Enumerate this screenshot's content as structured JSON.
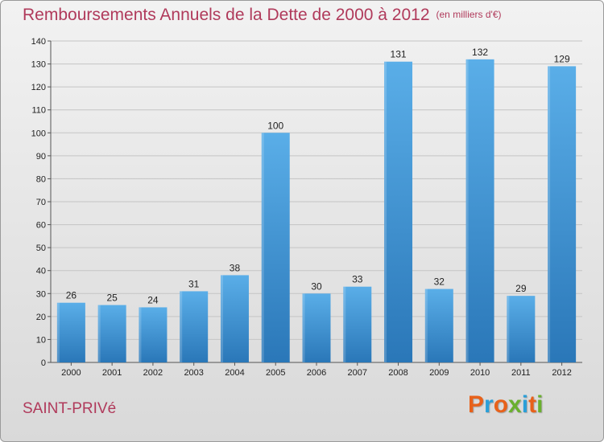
{
  "header": {
    "title": "Remboursements Annuels de la Dette de 2000 à 2012",
    "subtitle": "(en milliers d'€)"
  },
  "footer": {
    "commune": "SAINT-PRIVé",
    "logo_text": "Proxiti",
    "logo_colors": [
      "#e8611a",
      "#2a9fd8",
      "#e8611a",
      "#6ab02e",
      "#2a9fd8",
      "#e8611a",
      "#6ab02e"
    ]
  },
  "colors": {
    "bar_top": "#5aaee8",
    "bar_bottom": "#2a77b8",
    "title": "#b03a5b"
  },
  "chart_data": {
    "type": "bar",
    "categories": [
      "2000",
      "2001",
      "2002",
      "2003",
      "2004",
      "2005",
      "2006",
      "2007",
      "2008",
      "2009",
      "2010",
      "2011",
      "2012"
    ],
    "values": [
      26,
      25,
      24,
      31,
      38,
      100,
      30,
      33,
      131,
      32,
      132,
      29,
      129
    ],
    "ylim": [
      0,
      140
    ],
    "yticks": [
      0,
      10,
      20,
      30,
      40,
      50,
      60,
      70,
      80,
      90,
      100,
      110,
      120,
      130,
      140
    ],
    "grid": true
  }
}
